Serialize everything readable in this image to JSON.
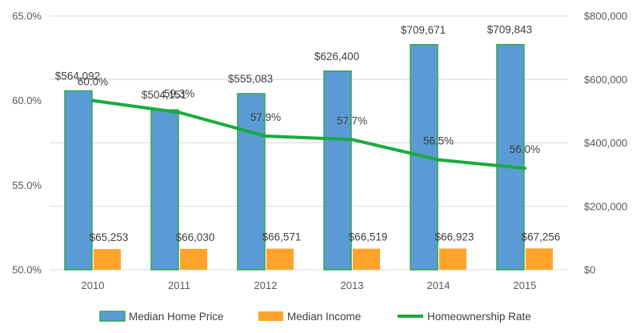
{
  "chart_data": {
    "type": "bar",
    "categories": [
      "2010",
      "2011",
      "2012",
      "2013",
      "2014",
      "2015"
    ],
    "series": [
      {
        "name": "Median Home Price",
        "kind": "bar",
        "axis": "right",
        "values": [
          564092,
          504151,
          555083,
          626400,
          709671,
          709843
        ],
        "labels": [
          "$564,092",
          "$504,151",
          "$555,083",
          "$626,400",
          "$709,671",
          "$709,843"
        ],
        "color": "#5b9bd5",
        "edge_color": "#2ea84a"
      },
      {
        "name": "Median Income",
        "kind": "bar",
        "axis": "right",
        "values": [
          65253,
          66030,
          66571,
          66519,
          66923,
          67256
        ],
        "labels": [
          "$65,253",
          "$66,030",
          "$66,571",
          "$66,519",
          "$66,923",
          "$67,256"
        ],
        "color": "#ffa32c"
      },
      {
        "name": "Homeownership Rate",
        "kind": "line",
        "axis": "left",
        "values": [
          60.0,
          59.3,
          57.9,
          57.7,
          56.5,
          56.0
        ],
        "labels": [
          "60.0%",
          "59.3%",
          "57.9%",
          "57.7%",
          "56.5%",
          "56.0%"
        ],
        "color": "#1aab3f"
      }
    ],
    "y_left": {
      "ylim": [
        50,
        65
      ],
      "ticks": [
        50,
        55,
        60,
        65
      ],
      "tick_labels": [
        "50.0%",
        "55.0%",
        "60.0%",
        "65.0%"
      ]
    },
    "y_right": {
      "ylim": [
        0,
        800000
      ],
      "ticks": [
        0,
        200000,
        400000,
        600000,
        800000
      ],
      "tick_labels": [
        "$0",
        "$200,000",
        "$400,000",
        "$600,000",
        "$800,000"
      ]
    },
    "grid": true,
    "legend": "bottom",
    "gridline_color": "#d9d9d9"
  }
}
